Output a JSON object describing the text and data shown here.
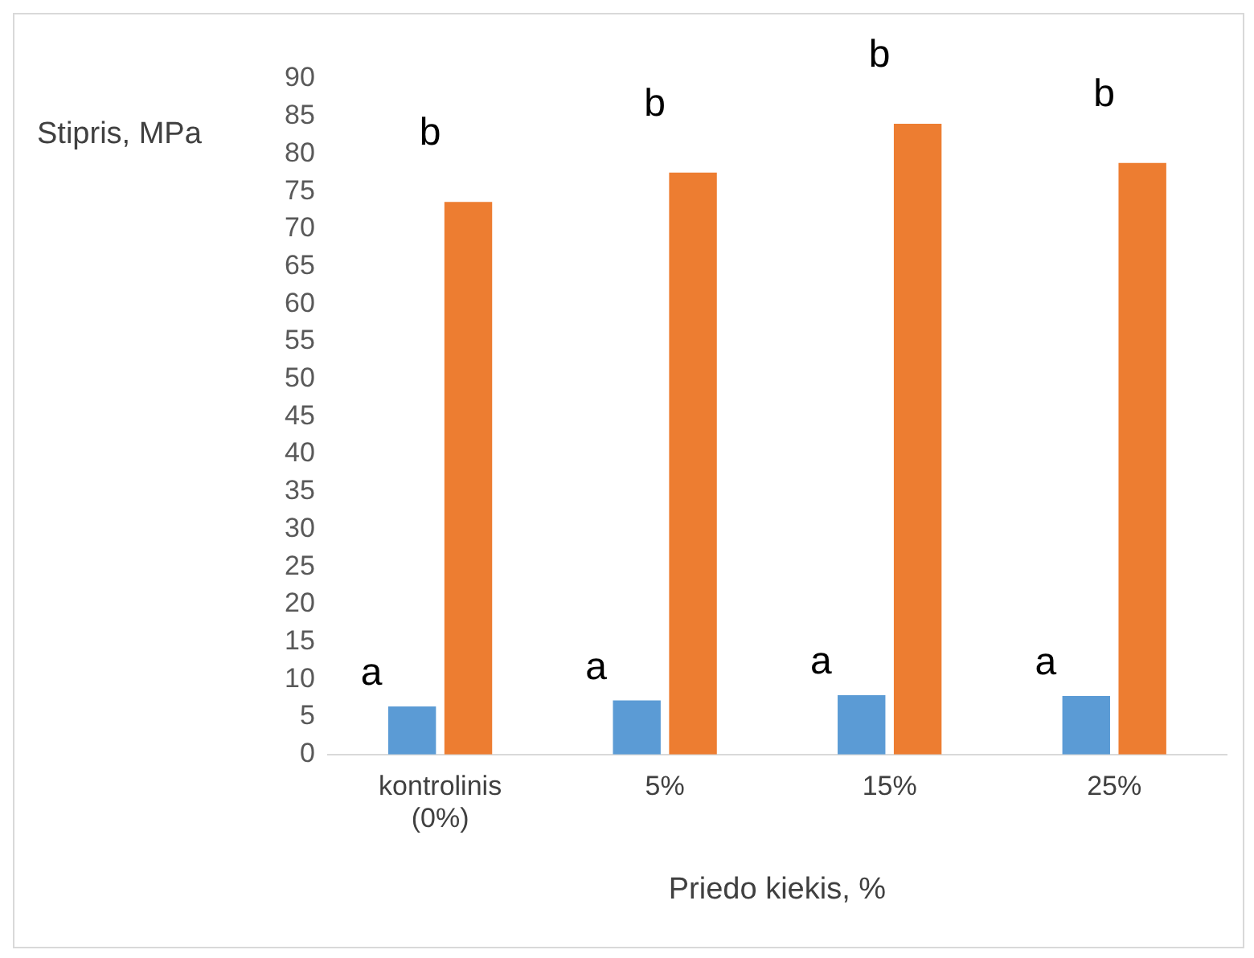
{
  "chart_data": {
    "type": "bar",
    "ylabel": "Stipris, MPa",
    "xlabel": "Priedo kiekis, %",
    "categories": [
      "kontrolinis (0%)",
      "5%",
      "15%",
      "25%"
    ],
    "series": [
      {
        "color": "#5b9bd5",
        "values": [
          6.4,
          7.2,
          7.9,
          7.8
        ]
      },
      {
        "color": "#ed7d31",
        "values": [
          73.6,
          77.5,
          84.0,
          78.8
        ]
      }
    ],
    "ylim": [
      0,
      90
    ],
    "yticks": [
      0,
      5,
      10,
      15,
      20,
      25,
      30,
      35,
      40,
      45,
      50,
      55,
      60,
      65,
      70,
      75,
      80,
      85,
      90
    ],
    "grid": false,
    "legend": false,
    "annotations": [
      {
        "text": "a",
        "x": "kontrolinis (0%)",
        "y": 6.4
      },
      {
        "text": "b",
        "x": "kontrolinis (0%)",
        "y": 73.6
      },
      {
        "text": "a",
        "x": "5%",
        "y": 7.2
      },
      {
        "text": "b",
        "x": "5%",
        "y": 77.5
      },
      {
        "text": "a",
        "x": "15%",
        "y": 7.9
      },
      {
        "text": "b",
        "x": "15%",
        "y": 84.0
      },
      {
        "text": "a",
        "x": "25%",
        "y": 7.8
      },
      {
        "text": "b",
        "x": "25%",
        "y": 78.8
      }
    ]
  }
}
